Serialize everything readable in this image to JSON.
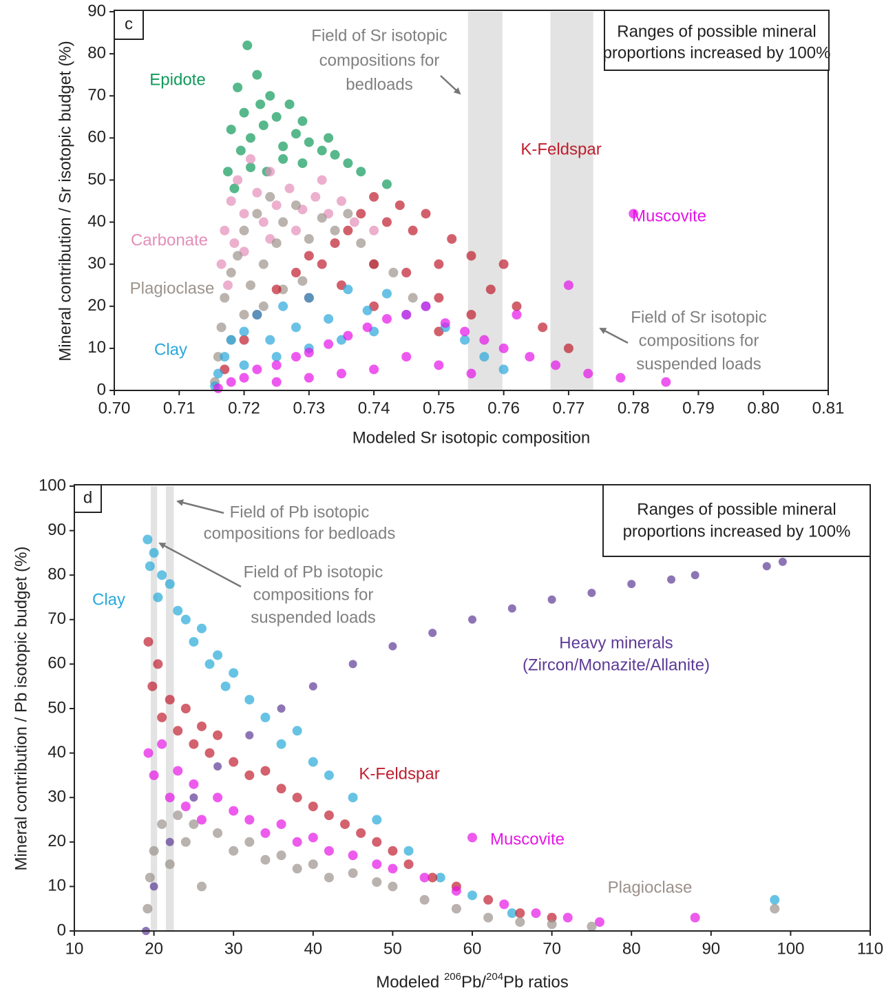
{
  "chart_data": [
    {
      "type": "scatter",
      "panel": "c",
      "xlabel": "Modeled Sr isotopic composition",
      "ylabel": "Mineral contribution / Sr isotopic budget (%)",
      "xlim": [
        0.7,
        0.81
      ],
      "xticks": [
        {
          "value": 0.7,
          "label": "0.70"
        },
        0.71,
        0.72,
        0.73,
        0.74,
        0.75,
        0.76,
        0.77,
        0.78,
        0.79,
        {
          "value": 0.8,
          "label": "0.80"
        },
        0.81
      ],
      "ylim": [
        0,
        90
      ],
      "yticks": [
        0,
        10,
        20,
        30,
        40,
        50,
        60,
        70,
        80,
        90
      ],
      "bands": [
        [
          0.7545,
          0.7598
        ],
        [
          0.7672,
          0.7738
        ]
      ],
      "note": [
        "Ranges of possible mineral",
        "proportions increased by 100%"
      ],
      "annotations": [
        {
          "lines": [
            "Field of Sr isotopic",
            "compositions for",
            "bedloads"
          ]
        },
        {
          "lines": [
            "Field of Sr isotopic",
            "compositions for",
            "suspended loads"
          ]
        }
      ],
      "series": [
        {
          "name": "Epidote",
          "color": "#0f9a5a",
          "x": [
            0.7175,
            0.718,
            0.719,
            0.7195,
            0.72,
            0.7205,
            0.721,
            0.722,
            0.7225,
            0.723,
            0.724,
            0.725,
            0.726,
            0.727,
            0.728,
            0.729,
            0.73,
            0.732,
            0.734,
            0.736,
            0.738,
            0.742,
            0.7185,
            0.721,
            0.7235,
            0.726,
            0.729,
            0.733
          ],
          "y": [
            52,
            62,
            72,
            57,
            66,
            82,
            60,
            75,
            68,
            63,
            70,
            65,
            58,
            68,
            61,
            64,
            59,
            57,
            56,
            54,
            52,
            49,
            48,
            53,
            52,
            55,
            54,
            60
          ]
        },
        {
          "name": "Carbonate",
          "color": "#e48fb9",
          "x": [
            0.7165,
            0.717,
            0.718,
            0.7185,
            0.719,
            0.72,
            0.721,
            0.722,
            0.723,
            0.724,
            0.725,
            0.727,
            0.729,
            0.731,
            0.733,
            0.735,
            0.737,
            0.74,
            0.7175,
            0.72,
            0.724,
            0.728,
            0.732
          ],
          "y": [
            30,
            38,
            45,
            35,
            50,
            42,
            55,
            47,
            40,
            52,
            44,
            48,
            43,
            46,
            42,
            45,
            40,
            38,
            25,
            33,
            36,
            38,
            50
          ]
        },
        {
          "name": "Plagioclase",
          "color": "#9c938c",
          "x": [
            0.7155,
            0.716,
            0.7165,
            0.717,
            0.718,
            0.719,
            0.72,
            0.721,
            0.722,
            0.723,
            0.724,
            0.725,
            0.726,
            0.728,
            0.73,
            0.732,
            0.734,
            0.736,
            0.738,
            0.74,
            0.743,
            0.746,
            0.718,
            0.72,
            0.723,
            0.726,
            0.729
          ],
          "y": [
            2,
            8,
            15,
            22,
            28,
            32,
            38,
            25,
            42,
            30,
            46,
            35,
            40,
            44,
            36,
            41,
            38,
            42,
            35,
            30,
            28,
            22,
            12,
            18,
            20,
            24,
            26
          ]
        },
        {
          "name": "K-Feldspar",
          "color": "#bf1d2d",
          "x": [
            0.717,
            0.72,
            0.722,
            0.725,
            0.728,
            0.73,
            0.732,
            0.734,
            0.736,
            0.738,
            0.74,
            0.742,
            0.744,
            0.746,
            0.748,
            0.75,
            0.752,
            0.755,
            0.758,
            0.762,
            0.766,
            0.77,
            0.735,
            0.74,
            0.745,
            0.75,
            0.755,
            0.73,
            0.74,
            0.75,
            0.76
          ],
          "y": [
            5,
            12,
            18,
            24,
            28,
            32,
            30,
            35,
            38,
            42,
            46,
            40,
            44,
            38,
            42,
            30,
            36,
            32,
            24,
            20,
            15,
            10,
            25,
            30,
            28,
            22,
            18,
            22,
            20,
            14,
            30
          ]
        },
        {
          "name": "Clay",
          "color": "#2aa7db",
          "x": [
            0.7155,
            0.716,
            0.717,
            0.718,
            0.72,
            0.722,
            0.724,
            0.726,
            0.728,
            0.73,
            0.733,
            0.736,
            0.739,
            0.742,
            0.745,
            0.748,
            0.751,
            0.754,
            0.757,
            0.76,
            0.72,
            0.725,
            0.73,
            0.735,
            0.74
          ],
          "y": [
            1,
            4,
            8,
            12,
            14,
            18,
            12,
            20,
            15,
            22,
            17,
            24,
            19,
            23,
            18,
            20,
            15,
            12,
            8,
            5,
            6,
            8,
            10,
            12,
            14
          ]
        },
        {
          "name": "Muscovite",
          "color": "#e512e8",
          "x": [
            0.716,
            0.718,
            0.72,
            0.722,
            0.725,
            0.728,
            0.73,
            0.733,
            0.736,
            0.739,
            0.742,
            0.745,
            0.748,
            0.751,
            0.754,
            0.757,
            0.76,
            0.764,
            0.768,
            0.773,
            0.778,
            0.785,
            0.725,
            0.73,
            0.735,
            0.74,
            0.745,
            0.75,
            0.755,
            0.762,
            0.77,
            0.78
          ],
          "y": [
            0.5,
            2,
            3,
            5,
            6,
            8,
            9,
            11,
            13,
            15,
            17,
            18,
            20,
            16,
            14,
            12,
            10,
            8,
            6,
            4,
            3,
            2,
            2,
            3,
            4,
            5,
            8,
            6,
            4,
            18,
            25,
            42
          ]
        }
      ]
    },
    {
      "type": "scatter",
      "panel": "d",
      "xlabel_parts": [
        {
          "text": "Modeled "
        },
        {
          "text": "206",
          "sup": true
        },
        {
          "text": "Pb/"
        },
        {
          "text": "204",
          "sup": true
        },
        {
          "text": "Pb ratios"
        }
      ],
      "ylabel": "Mineral contribution / Pb isotopic budget (%)",
      "xlim": [
        10,
        110
      ],
      "xticks": [
        10,
        20,
        30,
        40,
        50,
        60,
        70,
        80,
        90,
        100,
        110
      ],
      "ylim": [
        0,
        100
      ],
      "yticks": [
        0,
        10,
        20,
        30,
        40,
        50,
        60,
        70,
        80,
        90,
        100
      ],
      "bands": [
        [
          19.6,
          20.4
        ],
        [
          21.5,
          22.5
        ]
      ],
      "note": [
        "Ranges of possible mineral",
        "proportions increased by 100%"
      ],
      "annotations": [
        {
          "lines": [
            "Field of Pb isotopic",
            "compositions for bedloads"
          ]
        },
        {
          "lines": [
            "Field of Pb isotopic",
            "compositions for",
            "suspended loads"
          ]
        }
      ],
      "series": [
        {
          "name": "Clay",
          "color": "#27a9d9",
          "x": [
            19.2,
            19.5,
            20,
            20.5,
            21,
            22,
            23,
            24,
            25,
            26,
            27,
            28,
            29,
            30,
            32,
            34,
            36,
            38,
            40,
            42,
            45,
            48,
            52,
            56,
            60,
            65,
            98
          ],
          "y": [
            88,
            82,
            85,
            75,
            80,
            78,
            72,
            70,
            65,
            68,
            60,
            62,
            55,
            58,
            52,
            48,
            42,
            45,
            38,
            35,
            30,
            25,
            18,
            12,
            8,
            4,
            7
          ]
        },
        {
          "name": "K-Feldspar",
          "color": "#c01e30",
          "x": [
            19.3,
            19.8,
            20.5,
            21,
            22,
            23,
            24,
            25,
            26,
            27,
            28,
            30,
            32,
            34,
            36,
            38,
            40,
            42,
            44,
            46,
            48,
            50,
            52,
            55,
            58,
            62,
            66,
            70
          ],
          "y": [
            65,
            55,
            60,
            48,
            52,
            45,
            50,
            42,
            46,
            40,
            44,
            38,
            35,
            36,
            32,
            30,
            28,
            26,
            24,
            22,
            20,
            18,
            15,
            12,
            10,
            7,
            4,
            3
          ]
        },
        {
          "name": "Muscovite",
          "color": "#e516e5",
          "x": [
            19.3,
            20,
            21,
            22,
            23,
            24,
            25,
            26,
            28,
            30,
            32,
            34,
            36,
            38,
            40,
            42,
            45,
            48,
            50,
            54,
            58,
            60,
            64,
            68,
            72,
            76,
            88
          ],
          "y": [
            40,
            35,
            42,
            30,
            36,
            28,
            33,
            25,
            30,
            27,
            25,
            22,
            24,
            20,
            21,
            18,
            17,
            15,
            14,
            12,
            9,
            21,
            6,
            4,
            3,
            2,
            3
          ]
        },
        {
          "name": "Plagioclase",
          "color": "#9b918b",
          "x": [
            19.2,
            19.5,
            20,
            21,
            22,
            23,
            24,
            25,
            26,
            28,
            30,
            32,
            34,
            36,
            38,
            40,
            42,
            45,
            48,
            50,
            54,
            58,
            62,
            66,
            70,
            75,
            98
          ],
          "y": [
            5,
            12,
            18,
            24,
            15,
            26,
            20,
            24,
            10,
            22,
            18,
            20,
            16,
            17,
            14,
            15,
            12,
            13,
            11,
            10,
            7,
            5,
            3,
            2,
            1.5,
            1,
            5
          ]
        },
        {
          "name": "Heavy minerals",
          "sublabel": "(Zircon/Monazite/Allanite)",
          "color": "#5d3a96",
          "x": [
            19,
            20,
            22,
            25,
            28,
            32,
            36,
            40,
            45,
            50,
            55,
            60,
            65,
            70,
            75,
            80,
            85,
            88,
            97,
            99
          ],
          "y": [
            0,
            10,
            20,
            30,
            37,
            44,
            50,
            55,
            60,
            64,
            67,
            70,
            72.5,
            74.5,
            76,
            78,
            79,
            80,
            82,
            83
          ]
        }
      ]
    }
  ]
}
